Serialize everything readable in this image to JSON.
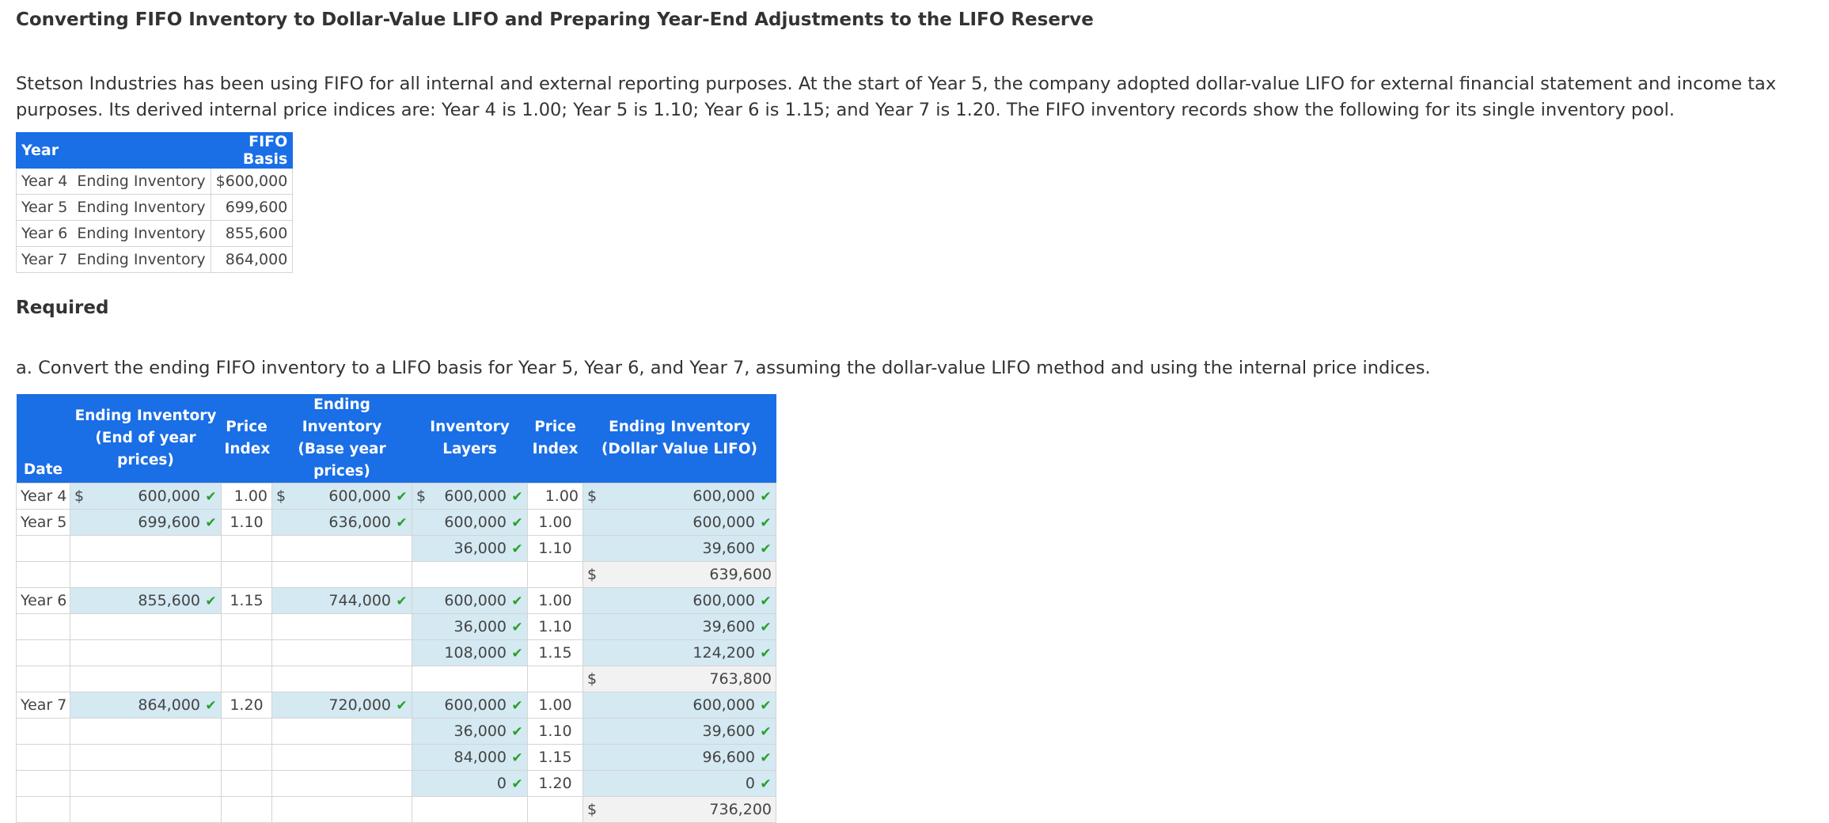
{
  "title": "Converting FIFO Inventory to Dollar-Value LIFO and Preparing Year-End Adjustments to the LIFO Reserve",
  "intro": "Stetson Industries has been using FIFO for all internal and external reporting purposes. At the start of Year 5, the company adopted dollar-value LIFO for external financial statement and income tax purposes. Its derived internal price indices are: Year 4 is 1.00; Year 5 is 1.10; Year 6 is 1.15; and Year 7 is 1.20. The FIFO inventory records show the following for its single inventory pool.",
  "fifo_table": {
    "headers": [
      "Year",
      "FIFO Basis"
    ],
    "rows": [
      {
        "year": "Year 4",
        "desc": "Ending Inventory",
        "value": "$600,000"
      },
      {
        "year": "Year 5",
        "desc": "Ending Inventory",
        "value": "699,600"
      },
      {
        "year": "Year 6",
        "desc": "Ending Inventory",
        "value": "855,600"
      },
      {
        "year": "Year 7",
        "desc": "Ending Inventory",
        "value": "864,000"
      }
    ]
  },
  "required_heading": "Required",
  "part_a": "a. Convert the ending FIFO inventory to a LIFO basis for Year 5, Year 6, and Year 7, assuming the dollar-value LIFO method and using the internal price indices.",
  "lifo_table": {
    "headers": {
      "date": "Date",
      "eoy_1": "Ending Inventory",
      "eoy_2": "(End of year prices)",
      "pi_1": "Price",
      "pi_2": "Index",
      "base_1": "Ending Inventory",
      "base_2": "(Base year prices)",
      "layers_1": "Inventory",
      "layers_2": "Layers",
      "lpi_1": "Price",
      "lpi_2": "Index",
      "dv_1": "Ending Inventory",
      "dv_2": "(Dollar Value LIFO)"
    },
    "check_icon": "check-icon",
    "rows": [
      {
        "date": "Year 4",
        "eoy": "600,000",
        "eoy_d": "$",
        "eoy_c": true,
        "pi": "1.00",
        "base": "600,000",
        "base_d": "$",
        "base_c": true,
        "layer": "600,000",
        "layer_d": "$",
        "layer_c": true,
        "lpi": "1.00",
        "dv": "600,000",
        "dv_d": "$",
        "dv_c": true
      },
      {
        "date": "Year 5",
        "eoy": "699,600",
        "eoy_c": true,
        "pi": "1.10",
        "base": "636,000",
        "base_c": true,
        "layer": "600,000",
        "layer_c": true,
        "lpi": "1.00",
        "dv": "600,000",
        "dv_c": true
      },
      {
        "layer": "36,000",
        "layer_c": true,
        "lpi": "1.10",
        "dv": "39,600",
        "dv_c": true
      },
      {
        "dv": "639,600",
        "dv_d": "$",
        "total": true
      },
      {
        "date": "Year 6",
        "eoy": "855,600",
        "eoy_c": true,
        "pi": "1.15",
        "base": "744,000",
        "base_c": true,
        "layer": "600,000",
        "layer_c": true,
        "lpi": "1.00",
        "dv": "600,000",
        "dv_c": true
      },
      {
        "layer": "36,000",
        "layer_c": true,
        "lpi": "1.10",
        "dv": "39,600",
        "dv_c": true
      },
      {
        "layer": "108,000",
        "layer_c": true,
        "lpi": "1.15",
        "dv": "124,200",
        "dv_c": true
      },
      {
        "dv": "763,800",
        "dv_d": "$",
        "total": true
      },
      {
        "date": "Year 7",
        "eoy": "864,000",
        "eoy_c": true,
        "pi": "1.20",
        "base": "720,000",
        "base_c": true,
        "layer": "600,000",
        "layer_c": true,
        "lpi": "1.00",
        "dv": "600,000",
        "dv_c": true
      },
      {
        "layer": "36,000",
        "layer_c": true,
        "lpi": "1.10",
        "dv": "39,600",
        "dv_c": true
      },
      {
        "layer": "84,000",
        "layer_c": true,
        "lpi": "1.15",
        "dv": "96,600",
        "dv_c": true
      },
      {
        "layer": "0",
        "layer_c": true,
        "lpi": "1.20",
        "dv": "0",
        "dv_c": true
      },
      {
        "dv": "736,200",
        "dv_d": "$",
        "total": true
      }
    ]
  }
}
